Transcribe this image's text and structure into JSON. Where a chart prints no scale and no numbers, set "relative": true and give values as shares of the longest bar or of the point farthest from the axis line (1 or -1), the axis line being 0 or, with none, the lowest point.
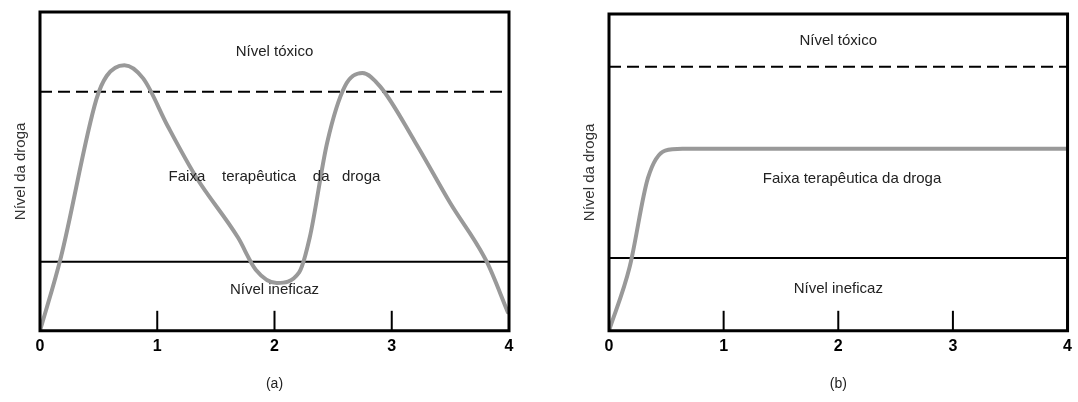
{
  "chart_data": [
    {
      "type": "line",
      "relative": true,
      "ylabel": "Nível da droga",
      "xlim": [
        0,
        4
      ],
      "xticks": [
        0,
        1,
        2,
        3,
        4
      ],
      "grid": false,
      "legend": false,
      "marker": "none",
      "line_style": "solid",
      "series": [
        {
          "color": "#999999",
          "x": [
            0,
            0.18,
            0.48,
            0.57,
            0.72,
            0.88,
            1.09,
            1.33,
            1.69,
            1.84,
            2.02,
            2.21,
            2.3,
            2.45,
            2.6,
            2.75,
            2.9,
            3.2,
            3.5,
            3.81,
            3.99
          ],
          "values": [
            0,
            0.28,
            0.87,
            0.96,
            1,
            0.95,
            0.77,
            0.58,
            0.35,
            0.23,
            0.18,
            0.22,
            0.35,
            0.71,
            0.92,
            0.97,
            0.92,
            0.71,
            0.48,
            0.26,
            0.07
          ]
        }
      ],
      "ref_lines": [
        {
          "axis": "y",
          "value": 0.9,
          "label": "Nível tóxico",
          "color": "#000000",
          "line_style": "dashed"
        },
        {
          "axis": "y",
          "value": 0.26,
          "label": "Nível ineficaz",
          "color": "#000000",
          "line_style": "solid"
        }
      ],
      "annotations": [
        "Faixa    terapêutica    da   droga",
        "(a)"
      ]
    },
    {
      "type": "line",
      "relative": true,
      "ylabel": "Nível da droga",
      "xlim": [
        0,
        4
      ],
      "xticks": [
        0,
        1,
        2,
        3,
        4
      ],
      "grid": false,
      "legend": false,
      "marker": "none",
      "line_style": "solid",
      "series": [
        {
          "color": "#999999",
          "x": [
            0,
            0.18,
            0.34,
            0.49,
            0.64,
            4
          ],
          "values": [
            0,
            0.35,
            0.84,
            0.99,
            1,
            1
          ]
        }
      ],
      "ref_lines": [
        {
          "axis": "y",
          "value": 1.45,
          "label": "Nível tóxico",
          "color": "#000000",
          "line_style": "dashed"
        },
        {
          "axis": "y",
          "value": 0.4,
          "label": "Nível ineficaz",
          "color": "#000000",
          "line_style": "solid"
        }
      ],
      "annotations": [
        "Faixa terapêutica da droga",
        "(b)"
      ]
    }
  ]
}
